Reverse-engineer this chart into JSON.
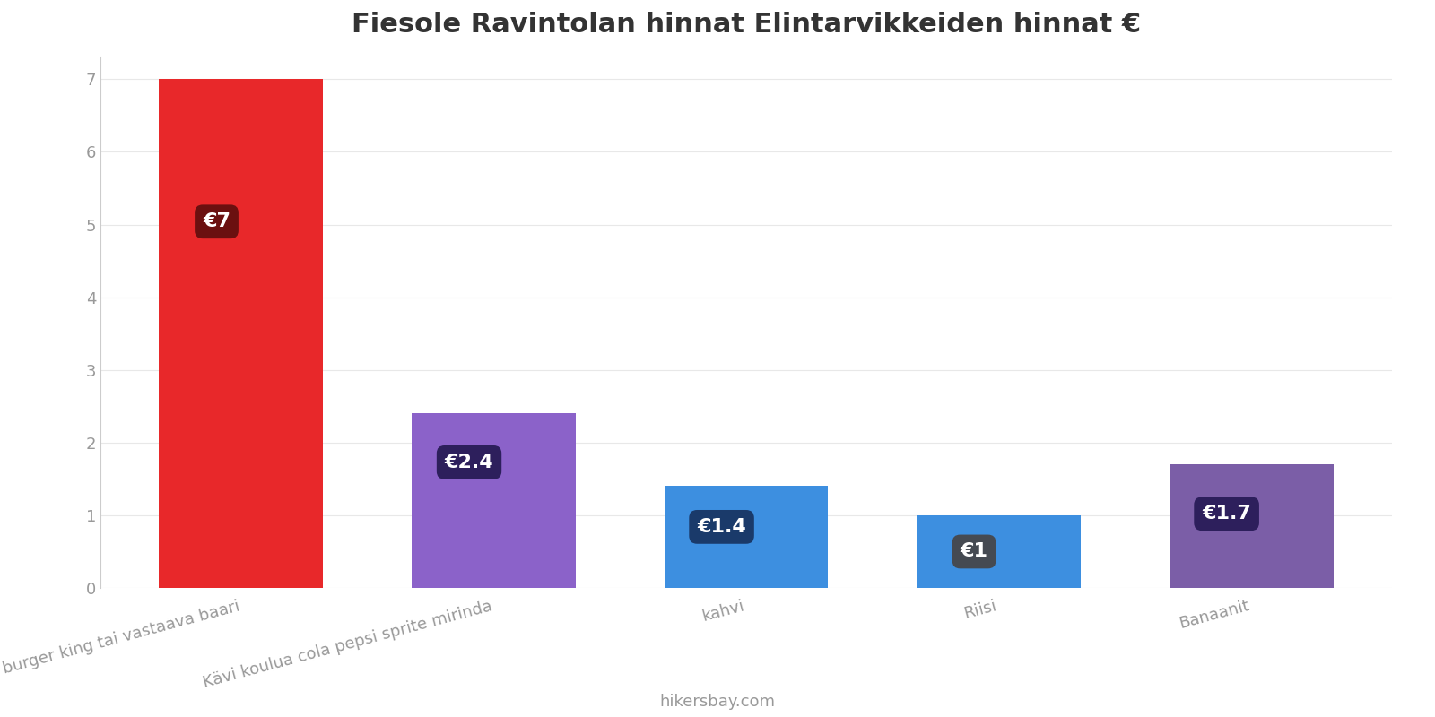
{
  "title": "Fiesole Ravintolan hinnat Elintarvikkeiden hinnat €",
  "categories": [
    "mac burger king tai vastaava baari",
    "Kävi koulua cola pepsi sprite mirinda",
    "kahvi",
    "Riisi",
    "Banaanit"
  ],
  "values": [
    7,
    2.4,
    1.4,
    1.0,
    1.7
  ],
  "bar_colors": [
    "#e8282a",
    "#8b62c9",
    "#3d8fe0",
    "#3d8fe0",
    "#7b5ea7"
  ],
  "label_bg_colors": [
    "#6b1010",
    "#2d1f5c",
    "#1a3a6a",
    "#454a52",
    "#2d1f5c"
  ],
  "labels": [
    "€7",
    "€2.4",
    "€1.4",
    "€1",
    "€1.7"
  ],
  "ylim": [
    0,
    7.3
  ],
  "yticks": [
    0,
    1,
    2,
    3,
    4,
    5,
    6,
    7
  ],
  "footer_text": "hikersbay.com",
  "title_fontsize": 22,
  "label_fontsize": 16,
  "tick_fontsize": 13,
  "footer_fontsize": 13,
  "background_color": "#ffffff",
  "label_text_color": "#ffffff",
  "tick_color": "#999999",
  "grid_color": "#e8e8e8"
}
